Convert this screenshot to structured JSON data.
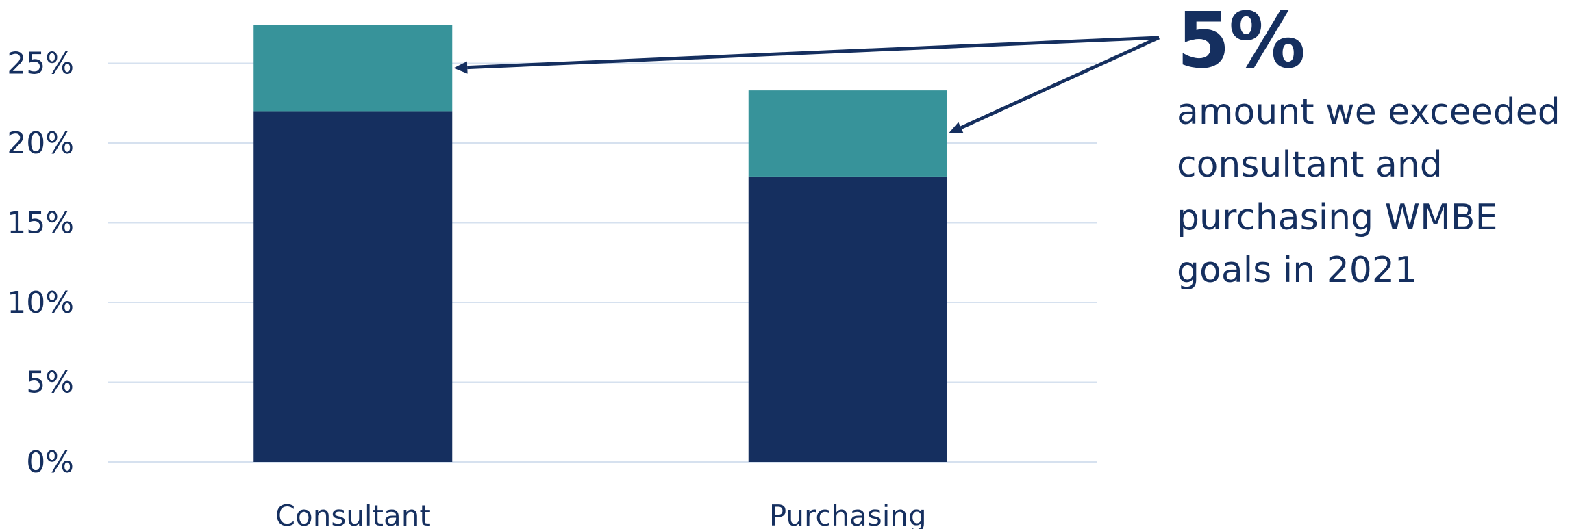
{
  "colors": {
    "base": "#152f5f",
    "excess": "#37939a",
    "grid": "#d6e1ef",
    "text": "#152f5f"
  },
  "chart_data": {
    "type": "bar",
    "stacked": true,
    "categories": [
      "Consultant",
      "Purchasing"
    ],
    "series": [
      {
        "values": [
          22.0,
          17.9
        ]
      },
      {
        "values": [
          5.4,
          5.4
        ]
      }
    ],
    "yticks": [
      "0%",
      "5%",
      "10%",
      "15%",
      "20%",
      "25%"
    ],
    "ylim": [
      0,
      27.5
    ],
    "grid": true
  },
  "callout": {
    "value": "5%",
    "text": "amount we exceeded consultant and purchasing WMBE goals in 2021"
  }
}
